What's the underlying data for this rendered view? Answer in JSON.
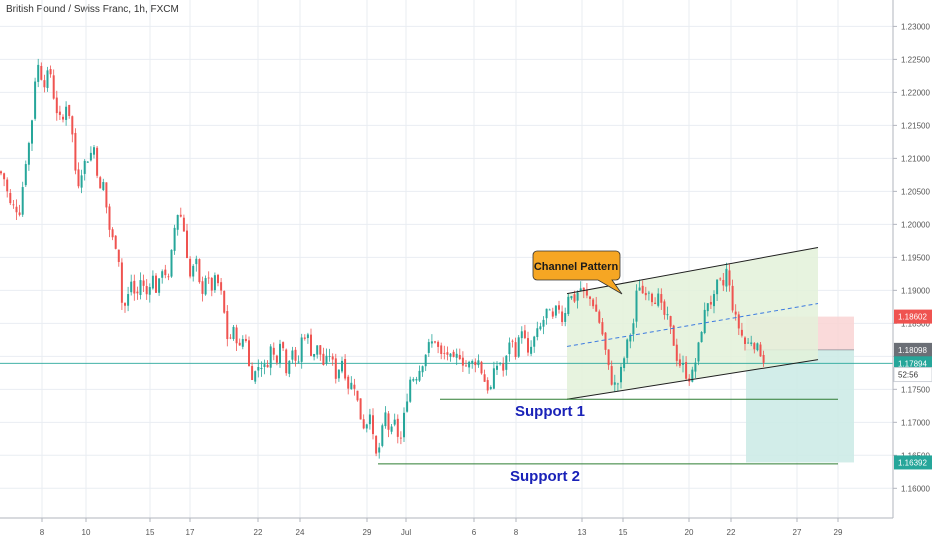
{
  "title": "British Pound / Swiss Franc, 1h, FXCM",
  "colors": {
    "up": "#26a69a",
    "down": "#ef5350",
    "grid": "#e9edf2",
    "channel": "#1f1f1f",
    "channel_fill": "#e3f1d9",
    "support": "#2e7d32",
    "label_text": "#1a22b8",
    "callout_fill": "#f6a623",
    "loss_zone": "#f9d4d4",
    "profit_zone": "#cdebe7",
    "hline": "#26a69a"
  },
  "chart_data": {
    "type": "candlestick",
    "symbol": "British Pound / Swiss Franc",
    "interval": "1h",
    "source": "FXCM",
    "ylim": [
      1.1555,
      1.234
    ],
    "y_ticks": [
      "1.23000",
      "1.22500",
      "1.22000",
      "1.21500",
      "1.21000",
      "1.20500",
      "1.20000",
      "1.19500",
      "1.19000",
      "1.18500",
      "1.18000",
      "1.17500",
      "1.17000",
      "1.16500",
      "1.16000"
    ],
    "x_ticks": [
      "8",
      "10",
      "15",
      "17",
      "22",
      "24",
      "29",
      "Jul",
      "6",
      "8",
      "13",
      "15",
      "20",
      "22",
      "27",
      "29"
    ],
    "path_anchors": [
      [
        0,
        1.208
      ],
      [
        4,
        1.207
      ],
      [
        10,
        1.203
      ],
      [
        20,
        1.202
      ],
      [
        25,
        1.209
      ],
      [
        31,
        1.214
      ],
      [
        35,
        1.222
      ],
      [
        39,
        1.2245
      ],
      [
        43,
        1.221
      ],
      [
        50,
        1.2235
      ],
      [
        55,
        1.218
      ],
      [
        62,
        1.215
      ],
      [
        67,
        1.219
      ],
      [
        72,
        1.214
      ],
      [
        77,
        1.2055
      ],
      [
        83,
        1.209
      ],
      [
        90,
        1.2105
      ],
      [
        95,
        1.212
      ],
      [
        99,
        1.2045
      ],
      [
        104,
        1.2065
      ],
      [
        108,
        1.2
      ],
      [
        113,
        1.1975
      ],
      [
        118,
        1.1965
      ],
      [
        122,
        1.188
      ],
      [
        126,
        1.1875
      ],
      [
        131,
        1.1915
      ],
      [
        136,
        1.1885
      ],
      [
        141,
        1.192
      ],
      [
        146,
        1.189
      ],
      [
        152,
        1.1925
      ],
      [
        157,
        1.1895
      ],
      [
        163,
        1.194
      ],
      [
        168,
        1.191
      ],
      [
        175,
        1.2
      ],
      [
        179,
        1.2025
      ],
      [
        184,
        1.199
      ],
      [
        190,
        1.192
      ],
      [
        196,
        1.1945
      ],
      [
        201,
        1.189
      ],
      [
        206,
        1.1925
      ],
      [
        211,
        1.19
      ],
      [
        216,
        1.192
      ],
      [
        222,
        1.189
      ],
      [
        228,
        1.182
      ],
      [
        234,
        1.184
      ],
      [
        240,
        1.181
      ],
      [
        245,
        1.184
      ],
      [
        250,
        1.177
      ],
      [
        255,
        1.1775
      ],
      [
        260,
        1.179
      ],
      [
        266,
        1.178
      ],
      [
        271,
        1.1815
      ],
      [
        276,
        1.179
      ],
      [
        281,
        1.1835
      ],
      [
        286,
        1.178
      ],
      [
        292,
        1.1815
      ],
      [
        297,
        1.1775
      ],
      [
        302,
        1.183
      ],
      [
        307,
        1.1835
      ],
      [
        312,
        1.18
      ],
      [
        318,
        1.1815
      ],
      [
        324,
        1.1785
      ],
      [
        330,
        1.1805
      ],
      [
        336,
        1.177
      ],
      [
        342,
        1.1795
      ],
      [
        348,
        1.1755
      ],
      [
        354,
        1.176
      ],
      [
        360,
        1.171
      ],
      [
        365,
        1.169
      ],
      [
        370,
        1.172
      ],
      [
        375,
        1.1645
      ],
      [
        380,
        1.1665
      ],
      [
        385,
        1.1715
      ],
      [
        390,
        1.168
      ],
      [
        395,
        1.17
      ],
      [
        400,
        1.1665
      ],
      [
        405,
        1.172
      ],
      [
        410,
        1.1765
      ],
      [
        416,
        1.177
      ],
      [
        421,
        1.1785
      ],
      [
        428,
        1.1815
      ],
      [
        435,
        1.1825
      ],
      [
        441,
        1.18
      ],
      [
        447,
        1.1805
      ],
      [
        453,
        1.179
      ],
      [
        459,
        1.1805
      ],
      [
        465,
        1.1785
      ],
      [
        472,
        1.179
      ],
      [
        478,
        1.1795
      ],
      [
        484,
        1.1765
      ],
      [
        490,
        1.1745
      ],
      [
        494,
        1.1775
      ],
      [
        499,
        1.1795
      ],
      [
        504,
        1.1775
      ],
      [
        510,
        1.183
      ],
      [
        516,
        1.1805
      ],
      [
        522,
        1.1845
      ],
      [
        528,
        1.18
      ],
      [
        535,
        1.183
      ],
      [
        541,
        1.1845
      ],
      [
        547,
        1.187
      ],
      [
        553,
        1.1855
      ],
      [
        558,
        1.188
      ],
      [
        563,
        1.185
      ],
      [
        568,
        1.1895
      ],
      [
        574,
        1.1885
      ],
      [
        580,
        1.1905
      ],
      [
        586,
        1.189
      ],
      [
        592,
        1.1885
      ],
      [
        598,
        1.186
      ],
      [
        603,
        1.183
      ],
      [
        608,
        1.1785
      ],
      [
        613,
        1.1755
      ],
      [
        618,
        1.176
      ],
      [
        623,
        1.179
      ],
      [
        628,
        1.1825
      ],
      [
        633,
        1.1845
      ],
      [
        638,
        1.1915
      ],
      [
        643,
        1.1895
      ],
      [
        648,
        1.1905
      ],
      [
        653,
        1.1885
      ],
      [
        658,
        1.189
      ],
      [
        663,
        1.1865
      ],
      [
        668,
        1.1855
      ],
      [
        673,
        1.1825
      ],
      [
        678,
        1.179
      ],
      [
        683,
        1.1785
      ],
      [
        688,
        1.1765
      ],
      [
        693,
        1.1775
      ],
      [
        698,
        1.181
      ],
      [
        703,
        1.1855
      ],
      [
        708,
        1.1885
      ],
      [
        713,
        1.188
      ],
      [
        718,
        1.1915
      ],
      [
        723,
        1.1905
      ],
      [
        727,
        1.1935
      ],
      [
        731,
        1.1885
      ],
      [
        736,
        1.1855
      ],
      [
        741,
        1.1835
      ],
      [
        746,
        1.1815
      ],
      [
        751,
        1.1825
      ],
      [
        756,
        1.1815
      ],
      [
        761,
        1.1805
      ],
      [
        765,
        1.179
      ]
    ],
    "channel": {
      "upper": [
        [
          567,
          1.1895
        ],
        [
          818,
          1.1965
        ]
      ],
      "lower": [
        [
          567,
          1.1735
        ],
        [
          818,
          1.1795
        ]
      ],
      "mid": [
        [
          567,
          1.1815
        ],
        [
          818,
          1.188
        ]
      ]
    },
    "support_levels": [
      {
        "label": "Support 1",
        "price": 1.1735,
        "x_from": 440,
        "x_to": 838
      },
      {
        "label": "Support 2",
        "price": 1.1637,
        "x_from": 378,
        "x_to": 838
      }
    ],
    "horizontal_lines": [
      {
        "price": 1.17894
      }
    ],
    "position": {
      "x_from": 746,
      "x_to": 854,
      "stop": 1.18602,
      "entry": 1.18098,
      "target": 1.16392
    },
    "price_labels": [
      {
        "text": "1.18602",
        "price": 1.18602,
        "bg": "#ef5350"
      },
      {
        "text": "1.18098",
        "price": 1.18098,
        "bg": "#6b6f76"
      },
      {
        "text": "1.17894",
        "price": 1.17894,
        "bg": "#26a69a"
      },
      {
        "text": "52:56",
        "price": 1.17724,
        "bg": "#ffffff"
      },
      {
        "text": "1.16392",
        "price": 1.16392,
        "bg": "#26a69a"
      }
    ],
    "annotations": [
      {
        "text": "Channel Pattern",
        "type": "callout"
      },
      {
        "text": "Support 1",
        "type": "label"
      },
      {
        "text": "Support 2",
        "type": "label"
      }
    ]
  }
}
